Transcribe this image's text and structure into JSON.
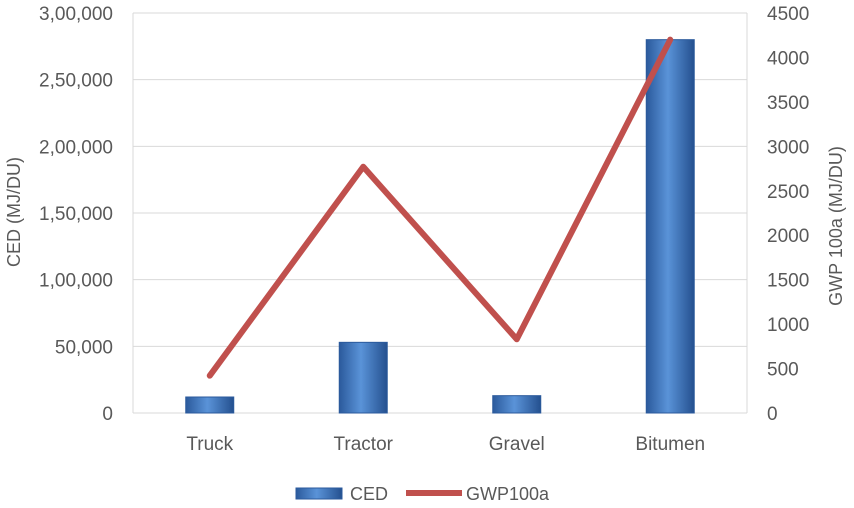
{
  "chart_data": {
    "type": "bar",
    "categories": [
      "Truck",
      "Tractor",
      "Gravel",
      "Bitumen"
    ],
    "series": [
      {
        "name": "CED",
        "type": "bar",
        "axis": "left",
        "values": [
          12000,
          53000,
          13000,
          280000
        ],
        "color": "#3f75c0"
      },
      {
        "name": "GWP100a",
        "type": "line",
        "axis": "right",
        "values": [
          420,
          2770,
          830,
          4200
        ],
        "color": "#c0504d"
      }
    ],
    "ylabel_left": "CED (MJ/DU)",
    "ylabel_right": "GWP 100a (MJ/DU)",
    "ylim_left": [
      0,
      300000
    ],
    "ylim_right": [
      0,
      4500
    ],
    "left_ticks": [
      "0",
      "50,000",
      "1,00,000",
      "1,50,000",
      "2,00,000",
      "2,50,000",
      "3,00,000"
    ],
    "right_ticks": [
      "0",
      "500",
      "1000",
      "1500",
      "2000",
      "2500",
      "3000",
      "3500",
      "4000",
      "4500"
    ],
    "grid": true,
    "legend": "bottom"
  }
}
